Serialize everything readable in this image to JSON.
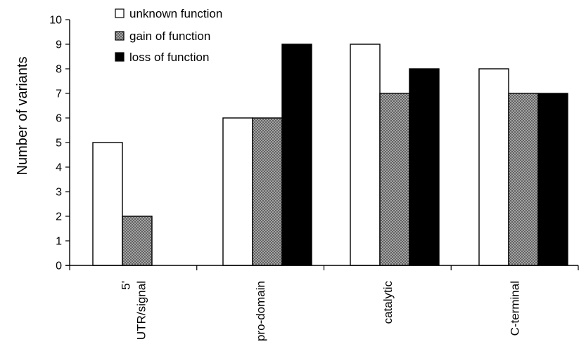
{
  "chart_data": {
    "type": "bar",
    "title": "",
    "xlabel": "",
    "ylabel": "Number of variants",
    "ylim": [
      0,
      10
    ],
    "yticks": [
      0,
      1,
      2,
      3,
      4,
      5,
      6,
      7,
      8,
      9,
      10
    ],
    "grid": false,
    "legend_position": "top-left",
    "categories": [
      [
        "5'",
        "UTR/signal"
      ],
      [
        "pro-domain"
      ],
      [
        "catalytic"
      ],
      [
        "C-terminal"
      ]
    ],
    "series": [
      {
        "name": "unknown function",
        "values": [
          5,
          6,
          9,
          8
        ],
        "fill": "white"
      },
      {
        "name": "gain of function",
        "values": [
          2,
          6,
          7,
          7
        ],
        "fill": "crosshatch"
      },
      {
        "name": "loss of function",
        "values": [
          0,
          9,
          8,
          7
        ],
        "fill": "black"
      }
    ],
    "colors": {
      "bar_outline": "#000000",
      "loss_fill": "#000000",
      "unknown_fill": "#ffffff",
      "gain_fill": "#9a9a9a"
    }
  }
}
